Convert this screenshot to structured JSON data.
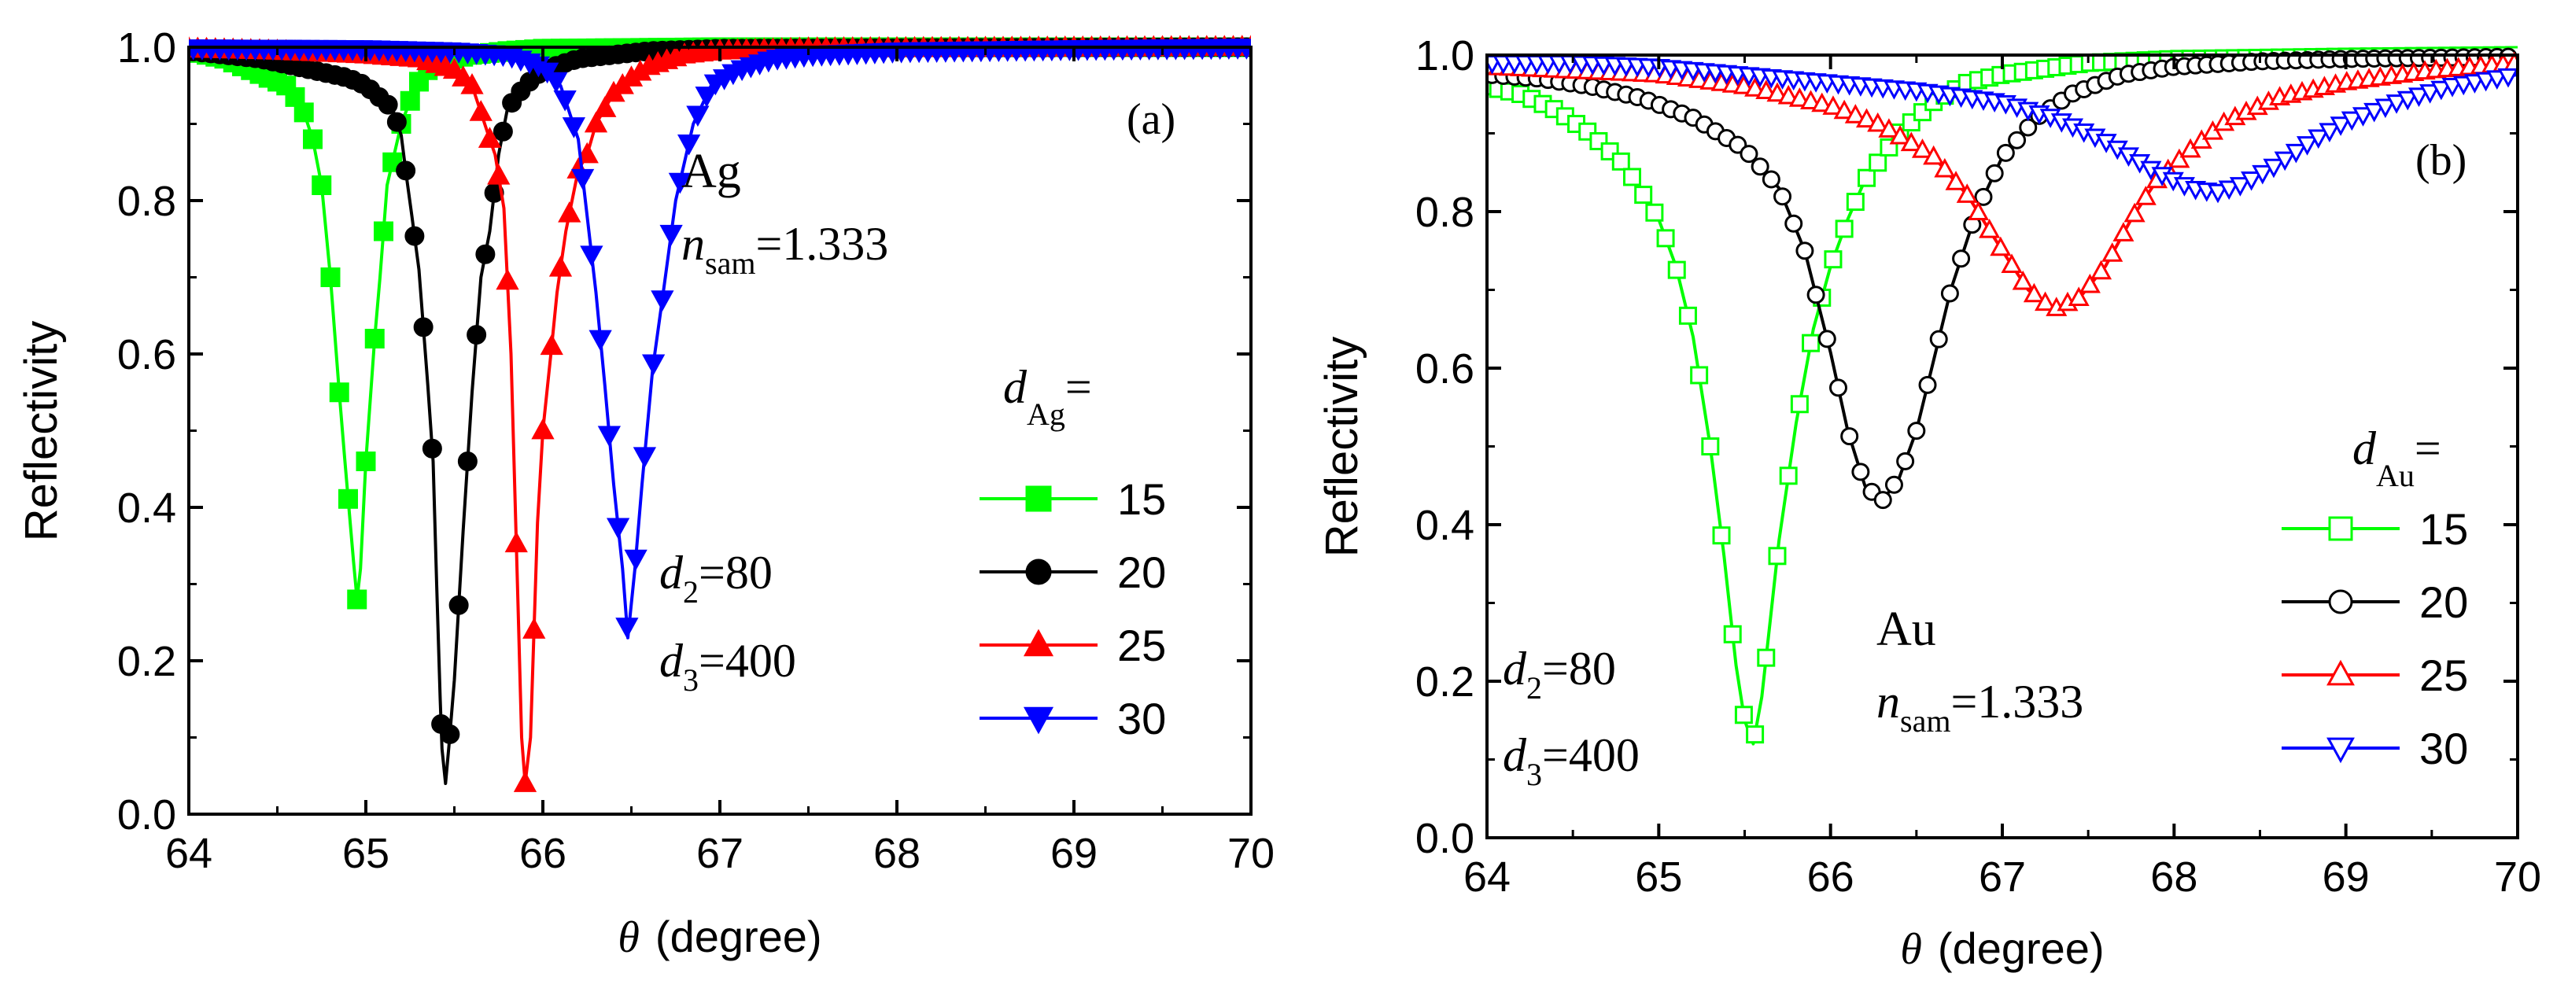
{
  "figure": {
    "colors": {
      "green": "#00ff00",
      "black": "#000000",
      "red": "#ff0000",
      "blue": "#0000ff",
      "axis": "#000000",
      "background": "#ffffff"
    }
  },
  "chart_data": [
    {
      "type": "line",
      "panel_label": "(a)",
      "xlabel_symbol": "θ",
      "xlabel_text": "(degree)",
      "ylabel": "Reflectivity",
      "xlim": [
        64,
        70
      ],
      "ylim": [
        0.0,
        1.0
      ],
      "xticks": [
        "64",
        "65",
        "66",
        "67",
        "68",
        "69",
        "70"
      ],
      "yticks": [
        "0.0",
        "0.2",
        "0.4",
        "0.6",
        "0.8",
        "1.0"
      ],
      "grid": false,
      "marker_style": "filled",
      "annotations": {
        "metal": "Ag",
        "n_italic": "n",
        "n_sub": "sam",
        "n_value": "=1.333",
        "legend_title_italic": "d",
        "legend_title_sub": "Ag",
        "legend_title_eq": "=",
        "d2_italic": "d",
        "d2_sub": "2",
        "d2_value": "=80",
        "d3_italic": "d",
        "d3_sub": "3",
        "d3_value": "=400"
      },
      "legend_position": "right-middle",
      "series": [
        {
          "name": "15",
          "color": "#00ff00",
          "marker": "square",
          "points": [
            [
              64.0,
              0.995
            ],
            [
              64.1,
              0.99
            ],
            [
              64.2,
              0.985
            ],
            [
              64.3,
              0.975
            ],
            [
              64.4,
              0.965
            ],
            [
              64.5,
              0.955
            ],
            [
              64.55,
              0.95
            ],
            [
              64.6,
              0.935
            ],
            [
              64.65,
              0.915
            ],
            [
              64.7,
              0.88
            ],
            [
              64.75,
              0.82
            ],
            [
              64.8,
              0.7
            ],
            [
              64.85,
              0.55
            ],
            [
              64.88,
              0.465
            ],
            [
              64.93,
              0.33
            ],
            [
              64.95,
              0.28
            ],
            [
              64.97,
              0.32
            ],
            [
              65.0,
              0.46
            ],
            [
              65.05,
              0.62
            ],
            [
              65.08,
              0.7
            ],
            [
              65.12,
              0.82
            ],
            [
              65.2,
              0.9
            ],
            [
              65.25,
              0.93
            ],
            [
              65.3,
              0.955
            ],
            [
              65.35,
              0.97
            ],
            [
              65.4,
              0.98
            ],
            [
              65.5,
              0.985
            ],
            [
              65.6,
              0.99
            ],
            [
              65.8,
              0.995
            ],
            [
              66.0,
              0.998
            ],
            [
              66.5,
              0.999
            ],
            [
              67.0,
              1.0
            ],
            [
              70.0,
              1.0
            ]
          ]
        },
        {
          "name": "20",
          "color": "#000000",
          "marker": "circle",
          "points": [
            [
              64.0,
              0.995
            ],
            [
              64.2,
              0.99
            ],
            [
              64.4,
              0.985
            ],
            [
              64.6,
              0.975
            ],
            [
              64.8,
              0.965
            ],
            [
              64.9,
              0.96
            ],
            [
              65.0,
              0.95
            ],
            [
              65.1,
              0.93
            ],
            [
              65.15,
              0.92
            ],
            [
              65.2,
              0.885
            ],
            [
              65.23,
              0.83
            ],
            [
              65.26,
              0.78
            ],
            [
              65.3,
              0.71
            ],
            [
              65.35,
              0.56
            ],
            [
              65.38,
              0.46
            ],
            [
              65.4,
              0.3
            ],
            [
              65.42,
              0.15
            ],
            [
              65.43,
              0.085
            ],
            [
              65.45,
              0.04
            ],
            [
              65.47,
              0.09
            ],
            [
              65.5,
              0.175
            ],
            [
              65.55,
              0.37
            ],
            [
              65.6,
              0.55
            ],
            [
              65.65,
              0.7
            ],
            [
              65.7,
              0.76
            ],
            [
              65.75,
              0.86
            ],
            [
              65.8,
              0.92
            ],
            [
              65.9,
              0.95
            ],
            [
              66.0,
              0.97
            ],
            [
              66.2,
              0.985
            ],
            [
              66.4,
              0.99
            ],
            [
              66.6,
              0.995
            ],
            [
              67.0,
              0.998
            ],
            [
              70.0,
              1.0
            ]
          ]
        },
        {
          "name": "25",
          "color": "#ff0000",
          "marker": "triangle-up",
          "points": [
            [
              64.0,
              0.998
            ],
            [
              64.5,
              0.995
            ],
            [
              65.0,
              0.99
            ],
            [
              65.3,
              0.985
            ],
            [
              65.5,
              0.97
            ],
            [
              65.6,
              0.95
            ],
            [
              65.7,
              0.88
            ],
            [
              65.73,
              0.86
            ],
            [
              65.78,
              0.79
            ],
            [
              65.82,
              0.6
            ],
            [
              65.86,
              0.27
            ],
            [
              65.88,
              0.1
            ],
            [
              65.9,
              0.04
            ],
            [
              65.93,
              0.1
            ],
            [
              65.97,
              0.38
            ],
            [
              66.0,
              0.5
            ],
            [
              66.05,
              0.61
            ],
            [
              66.08,
              0.68
            ],
            [
              66.13,
              0.76
            ],
            [
              66.2,
              0.84
            ],
            [
              66.25,
              0.86
            ],
            [
              66.3,
              0.9
            ],
            [
              66.4,
              0.94
            ],
            [
              66.5,
              0.96
            ],
            [
              66.6,
              0.975
            ],
            [
              66.8,
              0.99
            ],
            [
              67.0,
              0.995
            ],
            [
              67.5,
              0.998
            ],
            [
              70.0,
              1.0
            ]
          ]
        },
        {
          "name": "30",
          "color": "#0000ff",
          "marker": "triangle-down",
          "points": [
            [
              64.0,
              0.999
            ],
            [
              65.0,
              0.998
            ],
            [
              65.5,
              0.995
            ],
            [
              65.8,
              0.99
            ],
            [
              66.0,
              0.975
            ],
            [
              66.1,
              0.95
            ],
            [
              66.2,
              0.88
            ],
            [
              66.24,
              0.8
            ],
            [
              66.3,
              0.68
            ],
            [
              66.35,
              0.56
            ],
            [
              66.4,
              0.43
            ],
            [
              66.45,
              0.32
            ],
            [
              66.48,
              0.23
            ],
            [
              66.52,
              0.32
            ],
            [
              66.56,
              0.43
            ],
            [
              66.62,
              0.58
            ],
            [
              66.68,
              0.68
            ],
            [
              66.75,
              0.8
            ],
            [
              66.85,
              0.9
            ],
            [
              66.95,
              0.95
            ],
            [
              67.1,
              0.97
            ],
            [
              67.3,
              0.985
            ],
            [
              67.5,
              0.99
            ],
            [
              68.0,
              0.995
            ],
            [
              69.0,
              0.998
            ],
            [
              70.0,
              1.0
            ]
          ]
        }
      ]
    },
    {
      "type": "line",
      "panel_label": "(b)",
      "xlabel_symbol": "θ",
      "xlabel_text": "(degree)",
      "ylabel": "Reflectivity",
      "xlim": [
        64,
        70
      ],
      "ylim": [
        0.0,
        1.0
      ],
      "xticks": [
        "64",
        "65",
        "66",
        "67",
        "68",
        "69",
        "70"
      ],
      "yticks": [
        "0.0",
        "0.2",
        "0.4",
        "0.6",
        "0.8",
        "1.0"
      ],
      "grid": false,
      "marker_style": "open",
      "annotations": {
        "metal": "Au",
        "n_italic": "n",
        "n_sub": "sam",
        "n_value": "=1.333",
        "legend_title_italic": "d",
        "legend_title_sub": "Au",
        "legend_title_eq": "=",
        "d2_italic": "d",
        "d2_sub": "2",
        "d2_value": "=80",
        "d3_italic": "d",
        "d3_sub": "3",
        "d3_value": "=400"
      },
      "legend_position": "bottom-right",
      "series": [
        {
          "name": "15",
          "color": "#00ff00",
          "marker": "square",
          "points": [
            [
              64.0,
              0.96
            ],
            [
              64.2,
              0.95
            ],
            [
              64.4,
              0.93
            ],
            [
              64.6,
              0.9
            ],
            [
              64.8,
              0.86
            ],
            [
              65.0,
              0.79
            ],
            [
              65.1,
              0.73
            ],
            [
              65.2,
              0.64
            ],
            [
              65.3,
              0.5
            ],
            [
              65.38,
              0.36
            ],
            [
              65.45,
              0.22
            ],
            [
              65.5,
              0.15
            ],
            [
              65.55,
              0.12
            ],
            [
              65.6,
              0.18
            ],
            [
              65.65,
              0.28
            ],
            [
              65.7,
              0.38
            ],
            [
              65.8,
              0.53
            ],
            [
              65.9,
              0.65
            ],
            [
              66.0,
              0.73
            ],
            [
              66.1,
              0.79
            ],
            [
              66.2,
              0.84
            ],
            [
              66.4,
              0.9
            ],
            [
              66.6,
              0.94
            ],
            [
              66.8,
              0.965
            ],
            [
              67.0,
              0.975
            ],
            [
              67.5,
              0.99
            ],
            [
              68.0,
              0.995
            ],
            [
              69.0,
              0.998
            ],
            [
              70.0,
              1.0
            ]
          ]
        },
        {
          "name": "20",
          "color": "#000000",
          "marker": "circle",
          "points": [
            [
              64.0,
              0.975
            ],
            [
              64.3,
              0.97
            ],
            [
              64.6,
              0.96
            ],
            [
              64.9,
              0.945
            ],
            [
              65.2,
              0.92
            ],
            [
              65.5,
              0.88
            ],
            [
              65.7,
              0.83
            ],
            [
              65.85,
              0.75
            ],
            [
              66.0,
              0.62
            ],
            [
              66.1,
              0.52
            ],
            [
              66.2,
              0.45
            ],
            [
              66.3,
              0.43
            ],
            [
              66.4,
              0.46
            ],
            [
              66.5,
              0.52
            ],
            [
              66.6,
              0.61
            ],
            [
              66.7,
              0.7
            ],
            [
              66.85,
              0.8
            ],
            [
              67.0,
              0.87
            ],
            [
              67.2,
              0.92
            ],
            [
              67.4,
              0.95
            ],
            [
              67.7,
              0.975
            ],
            [
              68.0,
              0.985
            ],
            [
              68.5,
              0.992
            ],
            [
              69.0,
              0.995
            ],
            [
              70.0,
              0.998
            ]
          ]
        },
        {
          "name": "25",
          "color": "#ff0000",
          "marker": "triangle-up",
          "points": [
            [
              64.0,
              0.985
            ],
            [
              64.5,
              0.98
            ],
            [
              65.0,
              0.975
            ],
            [
              65.5,
              0.96
            ],
            [
              66.0,
              0.935
            ],
            [
              66.3,
              0.91
            ],
            [
              66.6,
              0.87
            ],
            [
              66.8,
              0.82
            ],
            [
              67.0,
              0.75
            ],
            [
              67.15,
              0.7
            ],
            [
              67.3,
              0.675
            ],
            [
              67.45,
              0.69
            ],
            [
              67.6,
              0.73
            ],
            [
              67.75,
              0.79
            ],
            [
              67.9,
              0.84
            ],
            [
              68.1,
              0.88
            ],
            [
              68.3,
              0.915
            ],
            [
              68.6,
              0.945
            ],
            [
              69.0,
              0.965
            ],
            [
              69.5,
              0.98
            ],
            [
              70.0,
              0.99
            ]
          ]
        },
        {
          "name": "30",
          "color": "#0000ff",
          "marker": "triangle-down",
          "points": [
            [
              64.0,
              0.99
            ],
            [
              64.5,
              0.99
            ],
            [
              65.0,
              0.985
            ],
            [
              65.5,
              0.975
            ],
            [
              66.0,
              0.965
            ],
            [
              66.5,
              0.955
            ],
            [
              67.0,
              0.94
            ],
            [
              67.3,
              0.92
            ],
            [
              67.6,
              0.89
            ],
            [
              67.9,
              0.85
            ],
            [
              68.1,
              0.83
            ],
            [
              68.25,
              0.825
            ],
            [
              68.4,
              0.835
            ],
            [
              68.6,
              0.86
            ],
            [
              68.8,
              0.89
            ],
            [
              69.0,
              0.915
            ],
            [
              69.3,
              0.94
            ],
            [
              69.6,
              0.96
            ],
            [
              70.0,
              0.975
            ]
          ]
        }
      ]
    }
  ]
}
